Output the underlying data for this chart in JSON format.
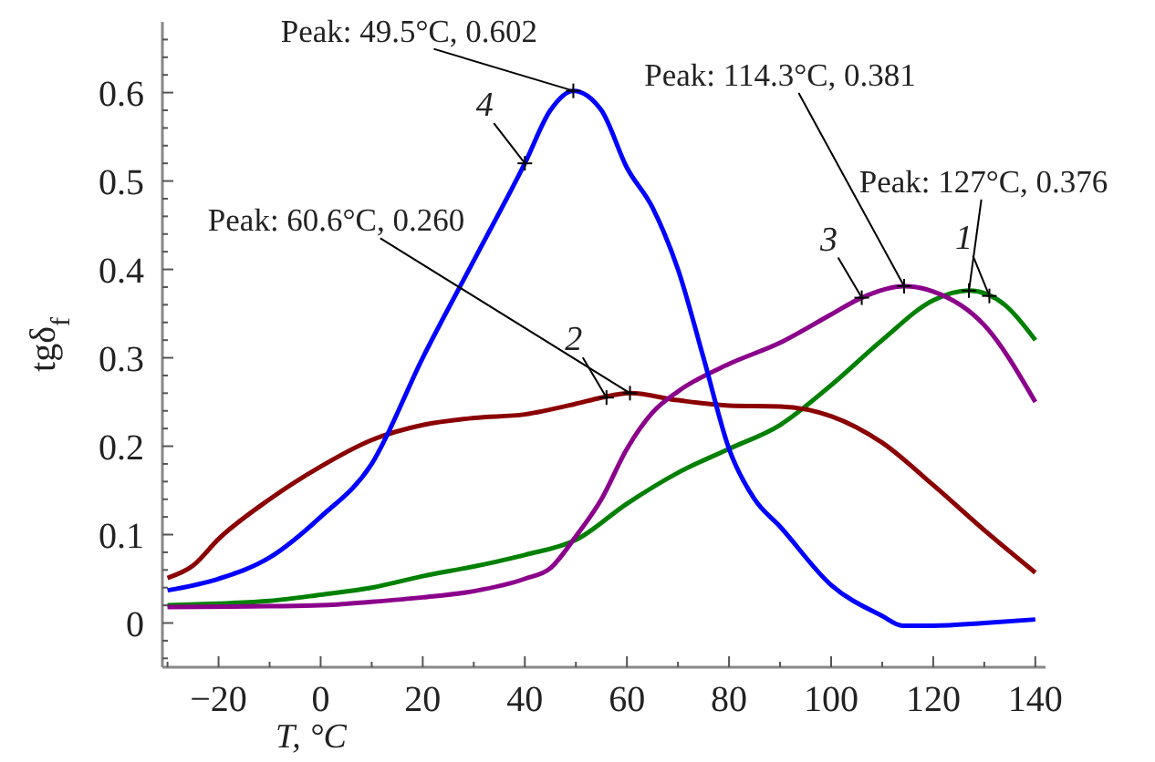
{
  "chart_data": {
    "type": "line",
    "xlabel": "T, °C",
    "ylabel": "tgδ$_{f}$",
    "xlim": [
      -31,
      142
    ],
    "ylim": [
      -0.05,
      0.68
    ],
    "xticks": [
      {
        "value": -30,
        "label": null
      },
      {
        "value": -20,
        "label": "−20"
      },
      {
        "value": -10,
        "label": null
      },
      0,
      {
        "value": 10,
        "label": null
      },
      20,
      {
        "value": 30,
        "label": null
      },
      40,
      {
        "value": 50,
        "label": null
      },
      60,
      {
        "value": 70,
        "label": null
      },
      80,
      {
        "value": 90,
        "label": null
      },
      100,
      {
        "value": 110,
        "label": null
      },
      120,
      {
        "value": 130,
        "label": null
      },
      140
    ],
    "yticks": [
      {
        "value": -0.04,
        "label": null
      },
      {
        "value": -0.02,
        "label": null
      },
      0,
      {
        "value": 0.02,
        "label": null
      },
      {
        "value": 0.04,
        "label": null
      },
      {
        "value": 0.06,
        "label": null
      },
      {
        "value": 0.08,
        "label": null
      },
      0.1,
      {
        "value": 0.12,
        "label": null
      },
      {
        "value": 0.14,
        "label": null
      },
      {
        "value": 0.16,
        "label": null
      },
      {
        "value": 0.18,
        "label": null
      },
      0.2,
      {
        "value": 0.22,
        "label": null
      },
      {
        "value": 0.24,
        "label": null
      },
      {
        "value": 0.26,
        "label": null
      },
      {
        "value": 0.28,
        "label": null
      },
      0.3,
      {
        "value": 0.32,
        "label": null
      },
      {
        "value": 0.34,
        "label": null
      },
      {
        "value": 0.36,
        "label": null
      },
      {
        "value": 0.38,
        "label": null
      },
      0.4,
      {
        "value": 0.42,
        "label": null
      },
      {
        "value": 0.44,
        "label": null
      },
      {
        "value": 0.46,
        "label": null
      },
      {
        "value": 0.48,
        "label": null
      },
      0.5,
      {
        "value": 0.52,
        "label": null
      },
      {
        "value": 0.54,
        "label": null
      },
      {
        "value": 0.56,
        "label": null
      },
      {
        "value": 0.58,
        "label": null
      },
      0.6,
      {
        "value": 0.62,
        "label": null
      },
      {
        "value": 0.64,
        "label": null
      },
      {
        "value": 0.66,
        "label": null
      }
    ],
    "grid": false,
    "marker": "none",
    "line_style": "solid",
    "series": [
      {
        "color": "#008000",
        "x": [
          -30,
          -20,
          -10,
          0,
          10,
          20,
          30,
          40,
          50,
          60,
          70,
          80,
          90,
          100,
          110,
          120,
          127,
          134,
          140
        ],
        "values": [
          0.02,
          0.022,
          0.025,
          0.032,
          0.04,
          0.053,
          0.064,
          0.077,
          0.094,
          0.135,
          0.17,
          0.197,
          0.224,
          0.269,
          0.32,
          0.365,
          0.376,
          0.36,
          0.32
        ]
      },
      {
        "color": "#8b0000",
        "x": [
          -30,
          -25,
          -20,
          -10,
          0,
          10,
          20,
          30,
          40,
          50,
          55,
          60.6,
          70,
          80,
          90,
          100,
          110,
          120,
          130,
          140
        ],
        "values": [
          0.051,
          0.065,
          0.095,
          0.14,
          0.177,
          0.207,
          0.224,
          0.232,
          0.236,
          0.248,
          0.255,
          0.26,
          0.252,
          0.246,
          0.245,
          0.234,
          0.204,
          0.156,
          0.105,
          0.057
        ]
      },
      {
        "color": "#8b008b",
        "x": [
          -30,
          -10,
          0,
          10,
          20,
          30,
          40,
          45,
          50,
          55,
          60,
          65,
          70,
          80,
          90,
          100,
          106,
          114.3,
          120,
          130,
          140
        ],
        "values": [
          0.018,
          0.019,
          0.02,
          0.024,
          0.029,
          0.036,
          0.05,
          0.062,
          0.098,
          0.14,
          0.197,
          0.238,
          0.262,
          0.293,
          0.317,
          0.349,
          0.368,
          0.381,
          0.375,
          0.337,
          0.25
        ]
      },
      {
        "color": "#0000ff",
        "x": [
          -30,
          -20,
          -10,
          0,
          10,
          20,
          30,
          40,
          45,
          49.5,
          55,
          60,
          65,
          70,
          75,
          80,
          85,
          90,
          100,
          110,
          114,
          120,
          130,
          140
        ],
        "values": [
          0.037,
          0.05,
          0.074,
          0.12,
          0.18,
          0.3,
          0.41,
          0.52,
          0.58,
          0.602,
          0.58,
          0.515,
          0.47,
          0.4,
          0.3,
          0.197,
          0.14,
          0.109,
          0.043,
          0.008,
          -0.003,
          -0.003,
          0.0,
          0.004
        ]
      }
    ],
    "annotations": [
      {
        "text": "Peak: 49.5°C, 0.602",
        "x": 49.5,
        "y": 0.602
      },
      {
        "text": "Peak: 60.6°C, 0.260",
        "x": 60.6,
        "y": 0.26
      },
      {
        "text": "Peak: 114.3°C, 0.381",
        "x": 114.3,
        "y": 0.381
      },
      {
        "text": "Peak: 127°C, 0.376",
        "x": 127,
        "y": 0.376
      },
      {
        "text": "4",
        "x": 40,
        "y": 0.52
      },
      {
        "text": "2",
        "x": 56,
        "y": 0.255
      },
      {
        "text": "3",
        "x": 106,
        "y": 0.368
      },
      {
        "text": "1",
        "x": 131,
        "y": 0.37
      }
    ]
  }
}
